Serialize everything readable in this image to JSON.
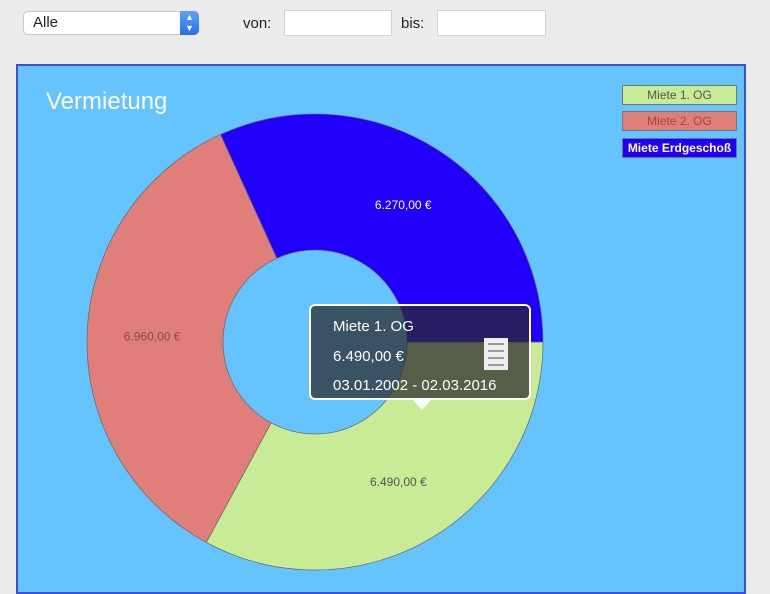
{
  "filter": {
    "selected": "Alle",
    "from_label": "von:",
    "from_value": "",
    "to_label": "bis:",
    "to_value": ""
  },
  "chart_data": {
    "type": "pie",
    "title": "Vermietung",
    "donut": true,
    "legend_position": "top-right",
    "slices": [
      {
        "name": "Miete 1. OG",
        "value": 6490,
        "label": "6.490,00 €",
        "color": "#c8ec96"
      },
      {
        "name": "Miete 2. OG",
        "value": 6960,
        "label": "6.960,00 €",
        "color": "#e07f7a"
      },
      {
        "name": "Miete Erdgeschoß",
        "value": 6270,
        "label": "6.270,00 €",
        "color": "#2100fb"
      }
    ]
  },
  "tooltip": {
    "name": "Miete 1. OG",
    "value": "6.490,00 €",
    "period": "03.01.2002 - 02.03.2016",
    "icon": "receipt-icon"
  }
}
